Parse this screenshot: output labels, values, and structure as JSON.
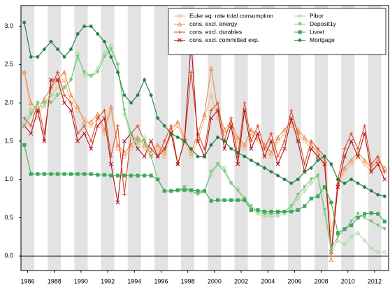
{
  "chart_data": {
    "type": "line",
    "legend": "upper right",
    "x": [
      1985.75,
      1986.25,
      1986.75,
      1987.25,
      1987.75,
      1988.25,
      1988.75,
      1989.25,
      1989.75,
      1990.25,
      1990.75,
      1991.25,
      1991.75,
      1992.25,
      1992.75,
      1993.25,
      1993.75,
      1994.25,
      1994.75,
      1995.25,
      1995.75,
      1996.25,
      1996.75,
      1997.25,
      1997.75,
      1998.25,
      1998.75,
      1999.25,
      1999.75,
      2000.25,
      2000.75,
      2001.25,
      2001.75,
      2002.25,
      2002.75,
      2003.25,
      2003.75,
      2004.25,
      2004.75,
      2005.25,
      2005.75,
      2006.25,
      2006.75,
      2007.25,
      2007.75,
      2008.25,
      2008.75,
      2009.25,
      2009.75,
      2010.25,
      2010.75,
      2011.25,
      2011.75,
      2012.25,
      2012.75
    ],
    "xlim": [
      1985.5,
      2013.05
    ],
    "xticks": [
      1986,
      1988,
      1990,
      1992,
      1994,
      1996,
      1998,
      2000,
      2002,
      2004,
      2006,
      2008,
      2010,
      2012
    ],
    "ylim": [
      -0.19,
      3.27
    ],
    "yticks": [
      {
        "value": 0,
        "label": "0.0"
      },
      {
        "value": 0.5,
        "label": "0.5"
      },
      {
        "value": 1,
        "label": "1.0"
      },
      {
        "value": 1.5,
        "label": "1.5"
      },
      {
        "value": 2,
        "label": "2.0"
      },
      {
        "value": 2.5,
        "label": "2.5"
      },
      {
        "value": 3,
        "label": "3.0"
      }
    ],
    "series": [
      {
        "name": "Euler eq. rate total consumption",
        "color": "#f5b98c",
        "marker": "circle",
        "values": [
          2.4,
          1.9,
          1.8,
          2.0,
          2.1,
          2.2,
          2.3,
          2.0,
          1.9,
          1.8,
          1.7,
          1.8,
          1.6,
          1.9,
          1.4,
          1.3,
          1.4,
          1.5,
          1.4,
          1.3,
          1.4,
          1.3,
          1.6,
          1.7,
          1.5,
          1.3,
          1.5,
          1.8,
          2.1,
          1.8,
          1.6,
          1.7,
          1.5,
          1.4,
          1.6,
          1.5,
          1.4,
          1.3,
          1.5,
          1.6,
          1.7,
          1.6,
          1.5,
          1.4,
          1.3,
          1.2,
          0.3,
          0.9,
          1.1,
          1.2,
          1.3,
          1.2,
          1.1,
          1.2,
          1.1
        ]
      },
      {
        "name": "cons. excl. energy",
        "color": "#f08c50",
        "marker": "triangle",
        "values": [
          2.4,
          2.0,
          1.9,
          2.05,
          2.2,
          2.3,
          2.4,
          2.1,
          1.95,
          1.75,
          1.75,
          1.85,
          1.65,
          1.95,
          1.45,
          1.35,
          1.45,
          1.55,
          1.45,
          1.35,
          1.45,
          1.35,
          1.65,
          1.75,
          1.55,
          1.35,
          1.6,
          1.85,
          2.45,
          1.9,
          1.65,
          1.75,
          1.55,
          1.45,
          1.65,
          1.55,
          1.45,
          1.35,
          1.55,
          1.65,
          1.75,
          1.65,
          1.55,
          1.45,
          1.35,
          1.25,
          -0.05,
          0.95,
          1.15,
          1.25,
          1.35,
          1.25,
          1.15,
          1.25,
          1.15
        ]
      },
      {
        "name": "cons. excl. durables",
        "color": "#dd4a26",
        "marker": "plus",
        "values": [
          1.8,
          1.7,
          2.0,
          1.6,
          2.2,
          2.4,
          2.1,
          2.0,
          1.6,
          1.7,
          1.5,
          1.8,
          1.9,
          1.3,
          1.7,
          0.8,
          1.6,
          1.7,
          1.5,
          1.4,
          1.3,
          1.5,
          1.7,
          1.2,
          1.5,
          2.4,
          1.6,
          1.4,
          1.9,
          2.0,
          1.5,
          1.8,
          1.3,
          2.0,
          1.5,
          1.7,
          1.4,
          1.6,
          1.3,
          1.5,
          1.9,
          1.6,
          1.2,
          1.5,
          1.4,
          1.3,
          0.05,
          1.0,
          1.4,
          1.6,
          1.4,
          1.7,
          1.2,
          1.3,
          1.1
        ]
      },
      {
        "name": "cons. excl. committed exp.",
        "color": "#b0141a",
        "marker": "x",
        "values": [
          1.7,
          1.6,
          1.9,
          1.5,
          2.3,
          2.3,
          2.0,
          1.9,
          1.5,
          1.6,
          1.4,
          1.7,
          1.8,
          1.2,
          0.7,
          1.5,
          1.6,
          1.4,
          1.3,
          1.5,
          1.3,
          1.4,
          1.6,
          1.2,
          1.5,
          2.8,
          1.5,
          1.3,
          1.8,
          1.9,
          1.4,
          1.7,
          1.2,
          1.9,
          1.4,
          1.6,
          1.3,
          1.5,
          1.2,
          1.4,
          1.8,
          1.5,
          1.1,
          1.4,
          1.3,
          1.2,
          0.05,
          0.9,
          1.3,
          1.5,
          1.3,
          1.6,
          1.1,
          1.2,
          1.0
        ]
      },
      {
        "name": "Pibor",
        "color": "#a8dca2",
        "marker": "diamond",
        "values": [
          1.75,
          1.9,
          1.95,
          1.95,
          2.1,
          2.1,
          2.2,
          2.3,
          2.65,
          2.35,
          2.35,
          2.45,
          2.65,
          2.75,
          2.5,
          1.85,
          1.55,
          1.45,
          1.55,
          1.3,
          1.0,
          0.85,
          0.85,
          0.85,
          0.88,
          0.85,
          0.82,
          0.85,
          1.05,
          1.2,
          1.15,
          0.95,
          0.88,
          0.75,
          0.62,
          0.55,
          0.52,
          0.52,
          0.52,
          0.55,
          0.62,
          0.75,
          0.85,
          0.95,
          1.05,
          0.55,
          0.05,
          0.2,
          0.15,
          0.25,
          0.3,
          0.2,
          0.1,
          0.05,
          0.05
        ]
      },
      {
        "name": "Deposit1y",
        "color": "#76c478",
        "marker": "triangle-down",
        "values": [
          1.7,
          1.85,
          2.0,
          2.0,
          2.0,
          2.1,
          2.2,
          2.3,
          2.6,
          2.4,
          2.35,
          2.4,
          2.6,
          2.7,
          2.5,
          1.9,
          1.6,
          1.5,
          1.5,
          1.3,
          1.0,
          0.85,
          0.85,
          0.85,
          0.9,
          0.85,
          0.8,
          0.85,
          1.1,
          1.2,
          1.1,
          0.95,
          0.85,
          0.75,
          0.65,
          0.58,
          0.55,
          0.55,
          0.55,
          0.58,
          0.65,
          0.8,
          0.9,
          1.0,
          1.05,
          0.6,
          0.1,
          0.25,
          0.35,
          0.45,
          0.55,
          0.5,
          0.45,
          0.4,
          0.35
        ]
      },
      {
        "name": "Livret",
        "color": "#3fa85a",
        "marker": "square",
        "values": [
          1.45,
          1.07,
          1.07,
          1.07,
          1.07,
          1.07,
          1.07,
          1.07,
          1.07,
          1.07,
          1.07,
          1.06,
          1.06,
          1.05,
          1.05,
          1.05,
          1.05,
          1.05,
          1.05,
          1.05,
          1.0,
          0.85,
          0.85,
          0.86,
          0.86,
          0.86,
          0.85,
          0.85,
          0.72,
          0.73,
          0.73,
          0.73,
          0.73,
          0.73,
          0.6,
          0.6,
          0.58,
          0.58,
          0.58,
          0.58,
          0.58,
          0.6,
          0.65,
          0.75,
          0.78,
          0.9,
          0.7,
          0.3,
          0.35,
          0.4,
          0.5,
          0.55,
          0.56,
          0.55,
          0.45
        ]
      },
      {
        "name": "Mortgage",
        "color": "#1b7a3c",
        "marker": "star",
        "values": [
          3.05,
          2.6,
          2.6,
          2.7,
          2.8,
          2.7,
          2.6,
          2.7,
          2.9,
          3.0,
          3.0,
          2.9,
          2.8,
          2.6,
          2.4,
          2.1,
          2.0,
          2.1,
          2.3,
          2.1,
          1.8,
          1.7,
          1.6,
          1.55,
          1.5,
          1.4,
          1.3,
          1.3,
          1.45,
          1.55,
          1.5,
          1.4,
          1.35,
          1.3,
          1.25,
          1.2,
          1.15,
          1.1,
          1.05,
          1.0,
          0.95,
          1.0,
          1.1,
          1.15,
          1.25,
          1.3,
          1.2,
          1.0,
          0.95,
          1.0,
          0.95,
          0.9,
          0.85,
          0.8,
          0.78
        ]
      }
    ]
  }
}
